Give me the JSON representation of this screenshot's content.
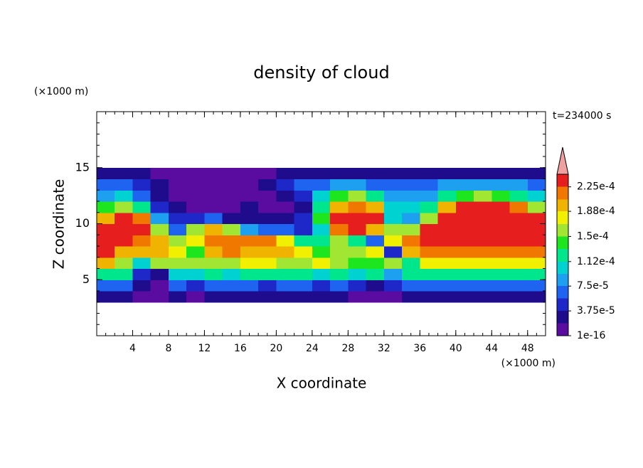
{
  "chart_data": {
    "type": "contour",
    "title": "density of cloud",
    "x_label": "X coordinate",
    "y_label": "Z coordinate",
    "x_unit_label": "(×1000 m)",
    "y_unit_label": "(×1000 m)",
    "annotation": "t=234000 s",
    "xlim": [
      0,
      50
    ],
    "ylim": [
      0,
      20
    ],
    "xticks": [
      4,
      8,
      12,
      16,
      20,
      24,
      28,
      32,
      36,
      40,
      44,
      48
    ],
    "yticks": [
      5,
      10,
      15
    ],
    "x_edges": [
      0,
      2,
      4,
      6,
      8,
      10,
      12,
      14,
      16,
      18,
      20,
      22,
      24,
      26,
      28,
      30,
      32,
      34,
      36,
      38,
      40,
      42,
      44,
      46,
      48,
      50
    ],
    "z_edges": [
      3,
      4,
      5,
      6,
      7,
      8,
      9,
      10,
      11,
      12,
      13,
      14,
      15
    ],
    "values": [
      [
        3e-05,
        3e-05,
        1e-05,
        1e-05,
        2e-05,
        1e-05,
        3e-05,
        2e-05,
        3e-05,
        3e-05,
        3e-05,
        3e-05,
        2e-05,
        3e-05,
        1e-05,
        1e-05,
        1e-05,
        2e-05,
        3e-05,
        3e-05,
        3e-05,
        3e-05,
        3e-05,
        3e-05,
        3e-05
      ],
      [
        7e-05,
        6e-05,
        3e-05,
        1e-05,
        6e-05,
        5e-05,
        6e-05,
        7e-05,
        6e-05,
        5e-05,
        6e-05,
        6e-05,
        5e-05,
        6e-05,
        4e-05,
        3e-05,
        4e-05,
        6e-05,
        7e-05,
        7e-05,
        7e-05,
        7e-05,
        7e-05,
        7e-05,
        7e-05
      ],
      [
        0.00013,
        0.00012,
        4e-05,
        3e-05,
        0.00011,
        0.00011,
        0.00012,
        0.00011,
        0.00012,
        0.00013,
        0.00012,
        0.00012,
        0.00011,
        0.00012,
        0.00011,
        0.00012,
        9e-05,
        0.00012,
        0.00013,
        0.00013,
        0.00013,
        0.00013,
        0.00013,
        0.00013,
        0.00013
      ],
      [
        0.00019,
        0.00016,
        0.0001,
        0.00015,
        0.00016,
        0.00015,
        0.00015,
        0.00016,
        0.00017,
        0.00017,
        0.00016,
        0.00015,
        0.00017,
        0.00015,
        0.00014,
        0.00014,
        0.00015,
        0.00012,
        0.00018,
        0.00018,
        0.00018,
        0.00018,
        0.00018,
        0.00018,
        0.00018
      ],
      [
        0.00023,
        0.0002,
        0.00019,
        0.0002,
        0.00017,
        0.00014,
        0.00019,
        0.00021,
        0.0002,
        0.0002,
        0.0002,
        0.00017,
        0.00014,
        0.00016,
        0.00016,
        0.00017,
        5e-05,
        0.00019,
        0.00021,
        0.00022,
        0.00022,
        0.00022,
        0.00022,
        0.00022,
        0.00022
      ],
      [
        0.00024,
        0.00023,
        0.00022,
        0.0002,
        0.00015,
        0.00017,
        0.00021,
        0.00022,
        0.00022,
        0.00021,
        0.00018,
        0.00012,
        0.00013,
        0.00016,
        0.00013,
        6e-05,
        0.00018,
        0.00022,
        0.00023,
        0.00024,
        0.00024,
        0.00024,
        0.00024,
        0.00024,
        0.00023
      ],
      [
        0.00024,
        0.00024,
        0.00023,
        0.00015,
        6e-05,
        0.00015,
        0.00019,
        0.00016,
        8e-05,
        7e-05,
        6e-05,
        5e-05,
        0.00011,
        0.00022,
        0.00024,
        0.0002,
        0.00016,
        0.00015,
        0.00023,
        0.00024,
        0.00024,
        0.00024,
        0.00024,
        0.00024,
        0.00024
      ],
      [
        0.0002,
        0.00023,
        0.00022,
        8e-05,
        4e-05,
        5e-05,
        6e-05,
        3e-05,
        3e-05,
        3e-05,
        3e-05,
        4e-05,
        0.00014,
        0.00024,
        0.00024,
        0.00023,
        0.0001,
        9e-05,
        0.00016,
        0.00023,
        0.00024,
        0.00024,
        0.00024,
        0.00024,
        0.00023
      ],
      [
        0.00014,
        0.00016,
        0.00012,
        4e-05,
        2e-05,
        1e-05,
        1e-05,
        1e-05,
        2e-05,
        1e-05,
        1e-05,
        3e-05,
        0.00013,
        0.0002,
        0.00022,
        0.00019,
        0.00011,
        0.0001,
        0.00013,
        0.00019,
        0.00023,
        0.00023,
        0.00023,
        0.00021,
        0.00015
      ],
      [
        9e-05,
        0.0001,
        7e-05,
        2e-05,
        1e-05,
        1e-05,
        1e-05,
        1e-05,
        1e-05,
        1e-05,
        2e-05,
        5e-05,
        0.00011,
        0.00014,
        0.00015,
        0.00012,
        9e-05,
        8e-05,
        9e-05,
        0.00012,
        0.00014,
        0.00015,
        0.00014,
        0.00012,
        0.0001
      ],
      [
        6e-05,
        6e-05,
        4e-05,
        2e-05,
        1e-05,
        1e-05,
        1e-05,
        1e-05,
        1e-05,
        2e-05,
        4e-05,
        6e-05,
        7e-05,
        8e-05,
        8e-05,
        7e-05,
        6e-05,
        6e-05,
        7e-05,
        8e-05,
        9e-05,
        9e-05,
        9e-05,
        8e-05,
        6e-05
      ],
      [
        3e-05,
        3e-05,
        2e-05,
        1e-05,
        1e-05,
        1e-05,
        1e-05,
        1e-05,
        1e-05,
        1e-05,
        2e-05,
        3e-05,
        3e-05,
        3e-05,
        3e-05,
        3e-05,
        3e-05,
        3e-05,
        3e-05,
        3e-05,
        3e-05,
        3e-05,
        3e-05,
        3e-05,
        3e-05
      ]
    ],
    "levels": [
      1e-16,
      1.875e-05,
      3.75e-05,
      5.625e-05,
      7.5e-05,
      9.35e-05,
      0.000112,
      0.000131,
      0.00015,
      0.000169,
      0.000188,
      0.000206,
      0.000225,
      0.000244
    ],
    "colors": [
      "#5a0ca0",
      "#1e0c8c",
      "#1e28c8",
      "#1e64f0",
      "#1ea0f0",
      "#00d2d2",
      "#00e68c",
      "#1ee61e",
      "#a0e632",
      "#f0f000",
      "#f0b400",
      "#f07800",
      "#e61e1e"
    ],
    "over_color": "#f0a0a0",
    "cticks": [
      1e-16,
      {
        "value": 3.75e-05,
        "label": "3.75e-5"
      },
      {
        "value": 7.5e-05,
        "label": "7.5e-5"
      },
      {
        "value": 0.000112,
        "label": "1.12e-4"
      },
      {
        "value": 0.00015,
        "label": "1.5e-4"
      },
      {
        "value": 0.000188,
        "label": "1.88e-4"
      },
      {
        "value": 0.000225,
        "label": "2.25e-4"
      }
    ]
  }
}
